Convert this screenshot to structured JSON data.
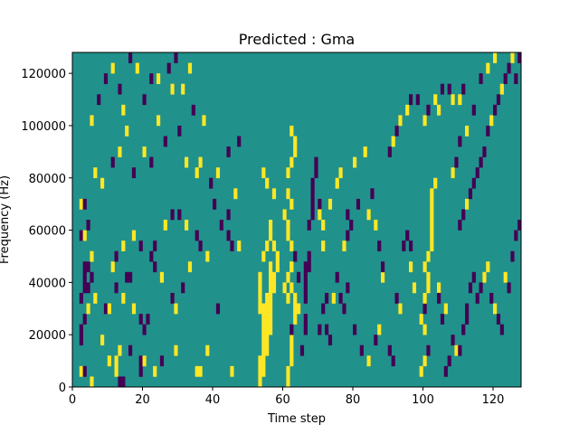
{
  "chart_data": {
    "type": "heatmap",
    "title": "Predicted : Gma",
    "xlabel": "Time step",
    "ylabel": "Frequency (Hz)",
    "xlim": [
      0,
      128
    ],
    "ylim": [
      0,
      128000
    ],
    "x_ticks": [
      0,
      20,
      40,
      60,
      80,
      100,
      120
    ],
    "y_ticks": [
      0,
      20000,
      40000,
      60000,
      80000,
      100000,
      120000
    ],
    "grid": false,
    "legend": "none",
    "n_time_steps": 128,
    "n_freq_bins": 32,
    "colors": {
      "low": "#440154",
      "mid": "#21918c",
      "high": "#fde725"
    },
    "background_value": 0,
    "cell_legend": "each cell: [time_step, frequency_bin, value]; value -1 = low (dark purple), 1 = high (yellow); all other cells 0 (teal); frequency_bin i spans i*4000 to (i+1)*4000 Hz",
    "cells": [
      [
        2,
        1,
        1
      ],
      [
        3,
        1,
        -1
      ],
      [
        5,
        0,
        1
      ],
      [
        8,
        4,
        1
      ],
      [
        10,
        2,
        1
      ],
      [
        12,
        1,
        1
      ],
      [
        13,
        0,
        -1
      ],
      [
        14,
        0,
        -1
      ],
      [
        12,
        2,
        1
      ],
      [
        13,
        3,
        1
      ],
      [
        16,
        3,
        -1
      ],
      [
        19,
        1,
        -1
      ],
      [
        19,
        2,
        -1
      ],
      [
        20,
        2,
        1
      ],
      [
        23,
        1,
        1
      ],
      [
        25,
        2,
        -1
      ],
      [
        29,
        3,
        1
      ],
      [
        35,
        1,
        1
      ],
      [
        36,
        1,
        1
      ],
      [
        38,
        3,
        1
      ],
      [
        45,
        1,
        1
      ],
      [
        2,
        4,
        -1
      ],
      [
        2,
        5,
        -1
      ],
      [
        3,
        6,
        -1
      ],
      [
        4,
        7,
        1
      ],
      [
        2,
        8,
        -1
      ],
      [
        3,
        9,
        -1
      ],
      [
        4,
        9,
        -1
      ],
      [
        3,
        10,
        -1
      ],
      [
        3,
        11,
        -1
      ],
      [
        4,
        11,
        -1
      ],
      [
        5,
        10,
        -1
      ],
      [
        6,
        8,
        1
      ],
      [
        5,
        12,
        1
      ],
      [
        2,
        14,
        -1
      ],
      [
        3,
        14,
        1
      ],
      [
        4,
        15,
        -1
      ],
      [
        2,
        17,
        1
      ],
      [
        3,
        17,
        -1
      ],
      [
        9,
        7,
        -1
      ],
      [
        10,
        7,
        1
      ],
      [
        12,
        9,
        -1
      ],
      [
        14,
        8,
        1
      ],
      [
        15,
        10,
        -1
      ],
      [
        16,
        10,
        -1
      ],
      [
        17,
        7,
        1
      ],
      [
        19,
        6,
        -1
      ],
      [
        20,
        5,
        -1
      ],
      [
        21,
        6,
        -1
      ],
      [
        22,
        12,
        -1
      ],
      [
        23,
        11,
        -1
      ],
      [
        25,
        10,
        1
      ],
      [
        28,
        8,
        -1
      ],
      [
        29,
        7,
        1
      ],
      [
        31,
        9,
        -1
      ],
      [
        33,
        11,
        1
      ],
      [
        35,
        14,
        -1
      ],
      [
        36,
        13,
        -1
      ],
      [
        38,
        12,
        1
      ],
      [
        41,
        7,
        -1
      ],
      [
        42,
        15,
        -1
      ],
      [
        44,
        14,
        -1
      ],
      [
        45,
        13,
        -1
      ],
      [
        47,
        13,
        1
      ],
      [
        11,
        11,
        1
      ],
      [
        12,
        12,
        -1
      ],
      [
        14,
        13,
        1
      ],
      [
        17,
        14,
        1
      ],
      [
        19,
        13,
        -1
      ],
      [
        23,
        13,
        -1
      ],
      [
        26,
        15,
        1
      ],
      [
        28,
        16,
        -1
      ],
      [
        30,
        16,
        -1
      ],
      [
        32,
        15,
        1
      ],
      [
        35,
        20,
        1
      ],
      [
        40,
        17,
        -1
      ],
      [
        44,
        16,
        -1
      ],
      [
        6,
        20,
        1
      ],
      [
        8,
        19,
        1
      ],
      [
        11,
        21,
        -1
      ],
      [
        13,
        22,
        1
      ],
      [
        15,
        24,
        1
      ],
      [
        17,
        20,
        -1
      ],
      [
        20,
        22,
        1
      ],
      [
        22,
        21,
        -1
      ],
      [
        24,
        25,
        1
      ],
      [
        26,
        23,
        -1
      ],
      [
        28,
        28,
        1
      ],
      [
        30,
        24,
        -1
      ],
      [
        32,
        21,
        1
      ],
      [
        34,
        26,
        -1
      ],
      [
        36,
        21,
        1
      ],
      [
        39,
        19,
        -1
      ],
      [
        41,
        20,
        1
      ],
      [
        44,
        22,
        -1
      ],
      [
        46,
        18,
        1
      ],
      [
        47,
        23,
        -1
      ],
      [
        5,
        25,
        1
      ],
      [
        7,
        27,
        -1
      ],
      [
        9,
        29,
        -1
      ],
      [
        11,
        30,
        1
      ],
      [
        13,
        28,
        -1
      ],
      [
        14,
        26,
        1
      ],
      [
        16,
        31,
        -1
      ],
      [
        18,
        30,
        1
      ],
      [
        20,
        27,
        -1
      ],
      [
        22,
        29,
        -1
      ],
      [
        24,
        29,
        1
      ],
      [
        27,
        30,
        -1
      ],
      [
        29,
        31,
        -1
      ],
      [
        31,
        28,
        1
      ],
      [
        33,
        30,
        1
      ],
      [
        37,
        25,
        1
      ],
      [
        53,
        0,
        1
      ],
      [
        53,
        1,
        1
      ],
      [
        53,
        2,
        1
      ],
      [
        54,
        1,
        1
      ],
      [
        54,
        2,
        1
      ],
      [
        54,
        3,
        1
      ],
      [
        54,
        4,
        1
      ],
      [
        54,
        5,
        1
      ],
      [
        54,
        6,
        1
      ],
      [
        54,
        7,
        1
      ],
      [
        55,
        3,
        1
      ],
      [
        55,
        4,
        1
      ],
      [
        55,
        5,
        1
      ],
      [
        55,
        6,
        1
      ],
      [
        55,
        7,
        1
      ],
      [
        55,
        8,
        1
      ],
      [
        56,
        5,
        1
      ],
      [
        56,
        6,
        1
      ],
      [
        56,
        7,
        1
      ],
      [
        56,
        8,
        1
      ],
      [
        56,
        9,
        1
      ],
      [
        56,
        10,
        1
      ],
      [
        56,
        11,
        1
      ],
      [
        57,
        9,
        1
      ],
      [
        57,
        10,
        1
      ],
      [
        58,
        11,
        1
      ],
      [
        58,
        12,
        1
      ],
      [
        57,
        13,
        1
      ],
      [
        53,
        7,
        1
      ],
      [
        53,
        8,
        1
      ],
      [
        53,
        9,
        1
      ],
      [
        53,
        10,
        1
      ],
      [
        54,
        12,
        1
      ],
      [
        55,
        13,
        1
      ],
      [
        56,
        14,
        1
      ],
      [
        54,
        20,
        1
      ],
      [
        55,
        19,
        1
      ],
      [
        57,
        18,
        1
      ],
      [
        56,
        15,
        1
      ],
      [
        61,
        0,
        1
      ],
      [
        61,
        1,
        1
      ],
      [
        62,
        2,
        1
      ],
      [
        62,
        3,
        1
      ],
      [
        62,
        4,
        1
      ],
      [
        62,
        5,
        -1
      ],
      [
        63,
        6,
        1
      ],
      [
        63,
        7,
        1
      ],
      [
        63,
        8,
        1
      ],
      [
        62,
        9,
        1
      ],
      [
        61,
        10,
        1
      ],
      [
        62,
        11,
        1
      ],
      [
        62,
        13,
        1
      ],
      [
        61,
        14,
        1
      ],
      [
        61,
        15,
        1
      ],
      [
        60,
        16,
        1
      ],
      [
        62,
        17,
        1
      ],
      [
        61,
        18,
        1
      ],
      [
        61,
        20,
        1
      ],
      [
        62,
        21,
        1
      ],
      [
        63,
        22,
        1
      ],
      [
        63,
        23,
        1
      ],
      [
        62,
        24,
        1
      ],
      [
        62,
        11,
        1
      ],
      [
        61,
        8,
        1
      ],
      [
        60,
        9,
        1
      ],
      [
        64,
        7,
        1
      ],
      [
        64,
        10,
        -1
      ],
      [
        63,
        12,
        -1
      ],
      [
        65,
        3,
        -1
      ],
      [
        66,
        5,
        -1
      ],
      [
        66,
        6,
        -1
      ],
      [
        66,
        8,
        -1
      ],
      [
        66,
        9,
        -1
      ],
      [
        66,
        10,
        -1
      ],
      [
        66,
        11,
        -1
      ],
      [
        67,
        11,
        -1
      ],
      [
        67,
        12,
        -1
      ],
      [
        67,
        15,
        -1
      ],
      [
        68,
        16,
        -1
      ],
      [
        68,
        17,
        -1
      ],
      [
        68,
        18,
        -1
      ],
      [
        68,
        19,
        -1
      ],
      [
        69,
        21,
        -1
      ],
      [
        69,
        20,
        -1
      ],
      [
        70,
        17,
        -1
      ],
      [
        70,
        16,
        1
      ],
      [
        71,
        15,
        1
      ],
      [
        71,
        13,
        1
      ],
      [
        70,
        5,
        -1
      ],
      [
        71,
        7,
        -1
      ],
      [
        72,
        8,
        -1
      ],
      [
        72,
        5,
        -1
      ],
      [
        73,
        4,
        -1
      ],
      [
        74,
        8,
        1
      ],
      [
        75,
        10,
        -1
      ],
      [
        76,
        8,
        -1
      ],
      [
        77,
        7,
        -1
      ],
      [
        78,
        9,
        -1
      ],
      [
        77,
        13,
        1
      ],
      [
        78,
        14,
        -1
      ],
      [
        79,
        15,
        -1
      ],
      [
        80,
        21,
        1
      ],
      [
        73,
        17,
        1
      ],
      [
        75,
        19,
        1
      ],
      [
        76,
        20,
        1
      ],
      [
        78,
        16,
        -1
      ],
      [
        81,
        17,
        -1
      ],
      [
        83,
        22,
        1
      ],
      [
        84,
        16,
        1
      ],
      [
        85,
        18,
        -1
      ],
      [
        86,
        15,
        1
      ],
      [
        87,
        13,
        -1
      ],
      [
        80,
        5,
        -1
      ],
      [
        82,
        3,
        -1
      ],
      [
        84,
        2,
        1
      ],
      [
        86,
        4,
        -1
      ],
      [
        87,
        5,
        1
      ],
      [
        88,
        10,
        1
      ],
      [
        88,
        11,
        -1
      ],
      [
        90,
        3,
        -1
      ],
      [
        91,
        2,
        -1
      ],
      [
        92,
        8,
        -1
      ],
      [
        93,
        7,
        1
      ],
      [
        94,
        13,
        -1
      ],
      [
        95,
        14,
        -1
      ],
      [
        96,
        13,
        -1
      ],
      [
        96,
        11,
        1
      ],
      [
        97,
        9,
        1
      ],
      [
        90,
        22,
        -1
      ],
      [
        91,
        23,
        1
      ],
      [
        92,
        24,
        -1
      ],
      [
        93,
        25,
        1
      ],
      [
        95,
        26,
        1
      ],
      [
        96,
        27,
        -1
      ],
      [
        98,
        27,
        -1
      ],
      [
        100,
        25,
        1
      ],
      [
        101,
        26,
        -1
      ],
      [
        103,
        27,
        1
      ],
      [
        104,
        26,
        1
      ],
      [
        105,
        28,
        -1
      ],
      [
        107,
        28,
        -1
      ],
      [
        108,
        27,
        1
      ],
      [
        110,
        27,
        1
      ],
      [
        111,
        28,
        -1
      ],
      [
        99,
        1,
        1
      ],
      [
        100,
        2,
        1
      ],
      [
        101,
        3,
        -1
      ],
      [
        100,
        5,
        1
      ],
      [
        99,
        6,
        1
      ],
      [
        100,
        7,
        -1
      ],
      [
        100,
        8,
        1
      ],
      [
        101,
        9,
        1
      ],
      [
        101,
        10,
        1
      ],
      [
        100,
        11,
        1
      ],
      [
        101,
        12,
        1
      ],
      [
        102,
        13,
        1
      ],
      [
        102,
        14,
        1
      ],
      [
        102,
        15,
        1
      ],
      [
        102,
        16,
        1
      ],
      [
        102,
        17,
        1
      ],
      [
        102,
        18,
        1
      ],
      [
        103,
        19,
        1
      ],
      [
        104,
        9,
        1
      ],
      [
        104,
        8,
        -1
      ],
      [
        105,
        6,
        -1
      ],
      [
        106,
        7,
        1
      ],
      [
        106,
        1,
        -1
      ],
      [
        107,
        2,
        -1
      ],
      [
        108,
        4,
        -1
      ],
      [
        109,
        3,
        1
      ],
      [
        110,
        3,
        -1
      ],
      [
        111,
        5,
        -1
      ],
      [
        112,
        6,
        -1
      ],
      [
        112,
        7,
        -1
      ],
      [
        113,
        9,
        -1
      ],
      [
        114,
        10,
        -1
      ],
      [
        115,
        8,
        -1
      ],
      [
        116,
        9,
        -1
      ],
      [
        117,
        10,
        1
      ],
      [
        118,
        11,
        1
      ],
      [
        119,
        8,
        -1
      ],
      [
        120,
        7,
        1
      ],
      [
        121,
        6,
        -1
      ],
      [
        122,
        5,
        -1
      ],
      [
        123,
        10,
        1
      ],
      [
        124,
        9,
        -1
      ],
      [
        125,
        12,
        -1
      ],
      [
        126,
        14,
        -1
      ],
      [
        127,
        15,
        -1
      ],
      [
        110,
        15,
        -1
      ],
      [
        111,
        16,
        -1
      ],
      [
        112,
        17,
        1
      ],
      [
        113,
        18,
        -1
      ],
      [
        114,
        19,
        -1
      ],
      [
        115,
        20,
        -1
      ],
      [
        116,
        21,
        -1
      ],
      [
        117,
        22,
        -1
      ],
      [
        118,
        24,
        -1
      ],
      [
        119,
        25,
        1
      ],
      [
        120,
        26,
        -1
      ],
      [
        121,
        27,
        -1
      ],
      [
        122,
        28,
        1
      ],
      [
        123,
        29,
        -1
      ],
      [
        124,
        30,
        -1
      ],
      [
        125,
        31,
        1
      ],
      [
        126,
        29,
        -1
      ],
      [
        127,
        31,
        -1
      ],
      [
        108,
        20,
        1
      ],
      [
        109,
        21,
        -1
      ],
      [
        110,
        23,
        -1
      ],
      [
        112,
        24,
        1
      ],
      [
        114,
        26,
        -1
      ],
      [
        116,
        29,
        -1
      ],
      [
        118,
        30,
        1
      ],
      [
        120,
        31,
        1
      ]
    ]
  }
}
